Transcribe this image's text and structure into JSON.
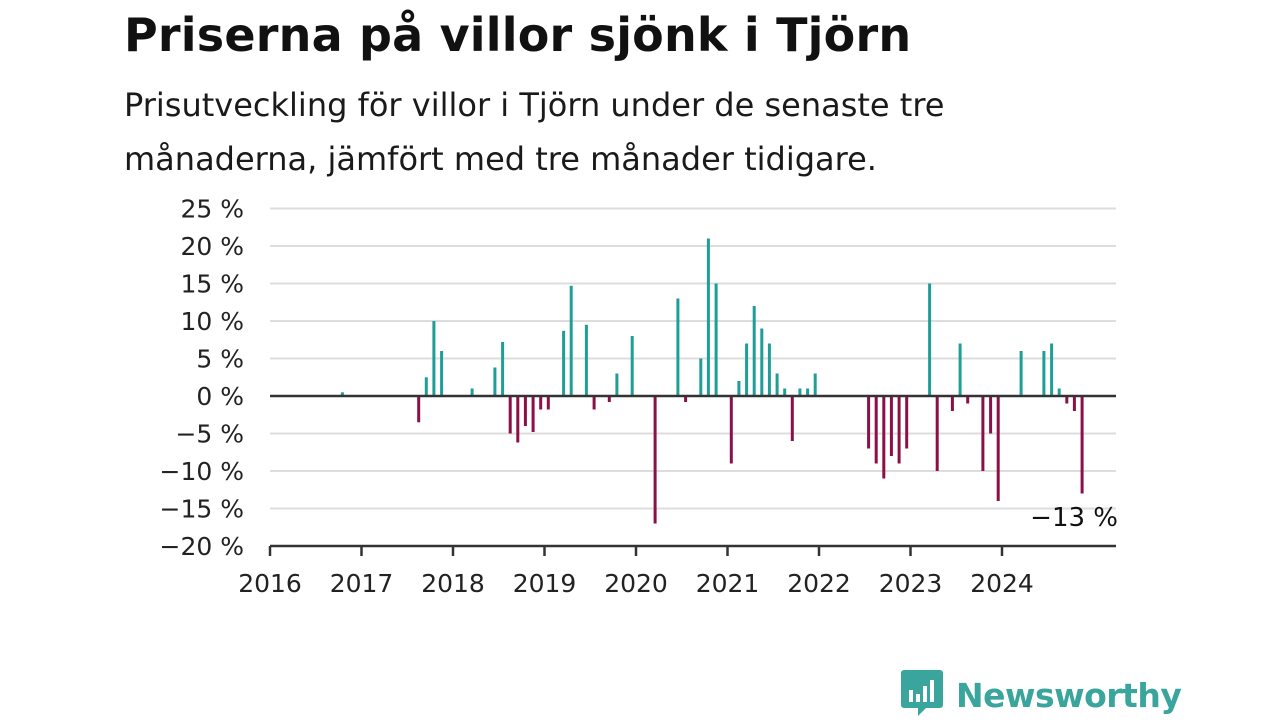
{
  "header": {
    "title": "Priserna på villor sjönk i Tjörn",
    "subtitle": "Prisutveckling för villor i Tjörn under de senaste tre månaderna, jämfört med tre månader tidigare."
  },
  "brand": {
    "name": "Newsworthy",
    "icon": "newsworthy-logo-icon",
    "color": "#3aa59d"
  },
  "colors": {
    "positive": "#1f9e97",
    "negative": "#8c1048",
    "zero_line": "#333333",
    "grid": "#dddddd"
  },
  "chart_data": {
    "type": "bar",
    "title": "Priserna på villor sjönk i Tjörn",
    "subtitle": "Prisutveckling för villor i Tjörn under de senaste tre månaderna, jämfört med tre månader tidigare.",
    "xlabel": "",
    "ylabel": "",
    "x_tick_labels": [
      "2016",
      "2017",
      "2018",
      "2019",
      "2020",
      "2021",
      "2022",
      "2023",
      "2024"
    ],
    "y_tick_labels": [
      "25 %",
      "20 %",
      "15 %",
      "10 %",
      "5 %",
      "0 %",
      "−5 %",
      "−10 %",
      "−15 %",
      "−20 %"
    ],
    "ylim": [
      -20,
      25
    ],
    "grid": true,
    "unit": "%",
    "annotation": "−13 %",
    "points": [
      {
        "date": "2016-10",
        "value": 0.5
      },
      {
        "date": "2017-08",
        "value": -3.5
      },
      {
        "date": "2017-09",
        "value": 2.5
      },
      {
        "date": "2017-10",
        "value": 10
      },
      {
        "date": "2017-11",
        "value": 6
      },
      {
        "date": "2018-03",
        "value": 1
      },
      {
        "date": "2018-06",
        "value": 3.8
      },
      {
        "date": "2018-07",
        "value": 7.2
      },
      {
        "date": "2018-08",
        "value": -5
      },
      {
        "date": "2018-09",
        "value": -6.2
      },
      {
        "date": "2018-10",
        "value": -4
      },
      {
        "date": "2018-11",
        "value": -4.8
      },
      {
        "date": "2018-12",
        "value": -1.8
      },
      {
        "date": "2019-01",
        "value": -1.8
      },
      {
        "date": "2019-03",
        "value": 8.7
      },
      {
        "date": "2019-04",
        "value": 14.7
      },
      {
        "date": "2019-06",
        "value": 9.5
      },
      {
        "date": "2019-07",
        "value": -1.8
      },
      {
        "date": "2019-09",
        "value": -0.8
      },
      {
        "date": "2019-10",
        "value": 3
      },
      {
        "date": "2019-12",
        "value": 8
      },
      {
        "date": "2020-03",
        "value": -17
      },
      {
        "date": "2020-06",
        "value": 13
      },
      {
        "date": "2020-07",
        "value": -0.8
      },
      {
        "date": "2020-09",
        "value": 5
      },
      {
        "date": "2020-10",
        "value": 21
      },
      {
        "date": "2020-11",
        "value": 15
      },
      {
        "date": "2021-01",
        "value": -9
      },
      {
        "date": "2021-02",
        "value": 2
      },
      {
        "date": "2021-03",
        "value": 7
      },
      {
        "date": "2021-04",
        "value": 12
      },
      {
        "date": "2021-05",
        "value": 9
      },
      {
        "date": "2021-06",
        "value": 7
      },
      {
        "date": "2021-07",
        "value": 3
      },
      {
        "date": "2021-08",
        "value": 1
      },
      {
        "date": "2021-09",
        "value": -6
      },
      {
        "date": "2021-10",
        "value": 1
      },
      {
        "date": "2021-11",
        "value": 1
      },
      {
        "date": "2021-12",
        "value": 3
      },
      {
        "date": "2022-07",
        "value": -7
      },
      {
        "date": "2022-08",
        "value": -9
      },
      {
        "date": "2022-09",
        "value": -11
      },
      {
        "date": "2022-10",
        "value": -8
      },
      {
        "date": "2022-11",
        "value": -9
      },
      {
        "date": "2022-12",
        "value": -7
      },
      {
        "date": "2023-03",
        "value": 15
      },
      {
        "date": "2023-04",
        "value": -10
      },
      {
        "date": "2023-06",
        "value": -2
      },
      {
        "date": "2023-07",
        "value": 7
      },
      {
        "date": "2023-08",
        "value": -1
      },
      {
        "date": "2023-10",
        "value": -10
      },
      {
        "date": "2023-11",
        "value": -5
      },
      {
        "date": "2023-12",
        "value": -14
      },
      {
        "date": "2024-03",
        "value": 6
      },
      {
        "date": "2024-06",
        "value": 6
      },
      {
        "date": "2024-07",
        "value": 7
      },
      {
        "date": "2024-08",
        "value": 1
      },
      {
        "date": "2024-09",
        "value": -1
      },
      {
        "date": "2024-10",
        "value": -2
      },
      {
        "date": "2024-11",
        "value": -13
      }
    ]
  }
}
